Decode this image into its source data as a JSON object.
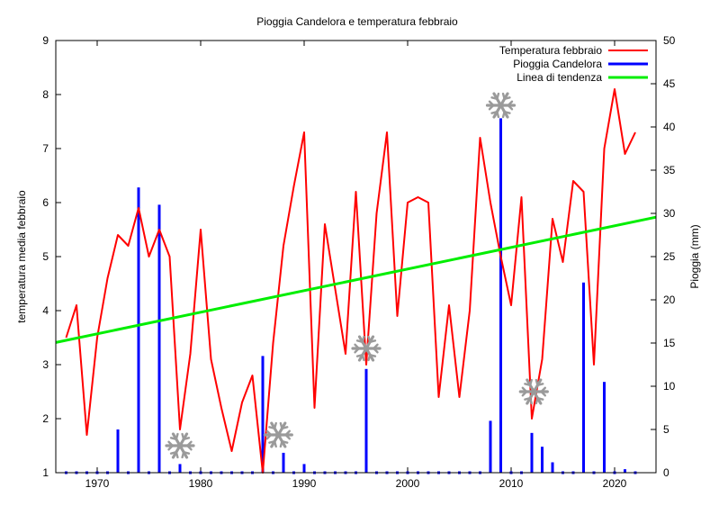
{
  "chart_data": {
    "type": "line",
    "title": "Pioggia Candelora e temperatura febbraio",
    "ylabel": "temperatura media febbraio",
    "y2label": "Pioggia (mm)",
    "xlim": [
      1966,
      2024
    ],
    "ylim": [
      1,
      9
    ],
    "y2lim": [
      0,
      50
    ],
    "xticks": [
      1970,
      1980,
      1990,
      2000,
      2010,
      2020
    ],
    "yticks": [
      1,
      2,
      3,
      4,
      5,
      6,
      7,
      8,
      9
    ],
    "y2ticks": [
      0,
      5,
      10,
      15,
      20,
      25,
      30,
      35,
      40,
      45,
      50
    ],
    "legend_position": "top-right",
    "series": [
      {
        "name": "Temperatura febbraio",
        "kind": "line",
        "axis": "left",
        "color": "#ff0000",
        "x": [
          1967,
          1968,
          1969,
          1970,
          1971,
          1972,
          1973,
          1974,
          1975,
          1976,
          1977,
          1978,
          1979,
          1980,
          1981,
          1982,
          1983,
          1984,
          1985,
          1986,
          1987,
          1988,
          1989,
          1990,
          1991,
          1992,
          1993,
          1994,
          1995,
          1996,
          1997,
          1998,
          1999,
          2000,
          2001,
          2002,
          2003,
          2004,
          2005,
          2006,
          2007,
          2008,
          2009,
          2010,
          2011,
          2012,
          2013,
          2014,
          2015,
          2016,
          2017,
          2018,
          2019,
          2020,
          2021,
          2022
        ],
        "y": [
          3.5,
          4.1,
          1.7,
          3.5,
          4.6,
          5.4,
          5.2,
          5.9,
          5.0,
          5.5,
          5.0,
          1.8,
          3.2,
          5.5,
          3.1,
          2.2,
          1.4,
          2.3,
          2.8,
          1.0,
          3.4,
          5.2,
          6.3,
          7.3,
          2.2,
          5.6,
          4.4,
          3.2,
          6.2,
          3.0,
          5.8,
          7.3,
          3.9,
          6.0,
          6.1,
          6.0,
          2.4,
          4.1,
          2.4,
          4.0,
          7.2,
          6.0,
          5.0,
          4.1,
          6.1,
          2.0,
          3.1,
          5.7,
          4.9,
          6.4,
          6.2,
          3.0,
          7.0,
          8.1,
          6.9,
          7.3
        ]
      },
      {
        "name": "Pioggia Candelora",
        "kind": "bar",
        "axis": "right",
        "color": "#0000ff",
        "x": [
          1972,
          1974,
          1976,
          1978,
          1986,
          1988,
          1990,
          1996,
          2008,
          2009,
          2012,
          2013,
          2014,
          2017,
          2019,
          2021
        ],
        "y": [
          5,
          33,
          31,
          1,
          13.5,
          2.3,
          1,
          12,
          6,
          41,
          4.6,
          3,
          1.2,
          22,
          10.5,
          0.4
        ]
      },
      {
        "name": "Linea di tendenza",
        "kind": "line",
        "axis": "left",
        "color": "#00ee00",
        "x": [
          1966,
          2024
        ],
        "y": [
          3.41,
          5.73
        ]
      }
    ],
    "zero_markers": {
      "axis": "right",
      "color": "#0000ff",
      "x": [
        1967,
        1968,
        1969,
        1970,
        1971,
        1973,
        1975,
        1977,
        1979,
        1980,
        1981,
        1982,
        1983,
        1984,
        1985,
        1987,
        1989,
        1991,
        1992,
        1993,
        1994,
        1995,
        1997,
        1998,
        1999,
        2000,
        2001,
        2002,
        2003,
        2004,
        2005,
        2006,
        2007,
        2010,
        2011,
        2015,
        2016,
        2018,
        2020,
        2022
      ],
      "y": 0
    },
    "snowflakes": [
      {
        "x": 1978,
        "y": 1.5
      },
      {
        "x": 1987.5,
        "y": 1.7
      },
      {
        "x": 1996,
        "y": 3.3
      },
      {
        "x": 2009,
        "y": 7.8
      },
      {
        "x": 2012.2,
        "y": 2.5
      }
    ]
  }
}
